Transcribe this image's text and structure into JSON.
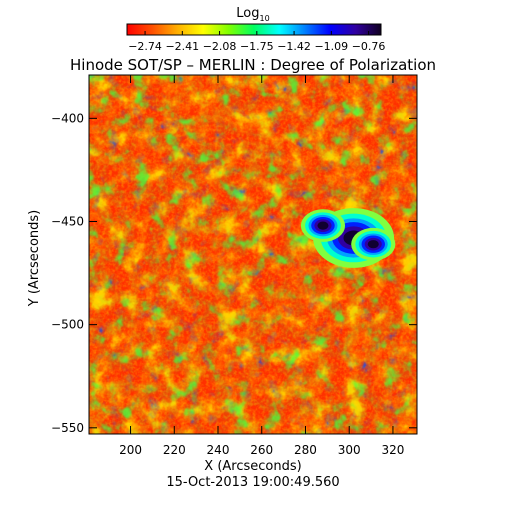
{
  "chart_data": {
    "type": "heatmap",
    "title": "Hinode SOT/SP – MERLIN : Degree of Polarization",
    "xlabel": "X (Arcseconds)",
    "ylabel": "Y (Arcseconds)",
    "date_label": "15-Oct-2013 19:00:49.560",
    "xlim": [
      181,
      331
    ],
    "ylim": [
      -553,
      -379
    ],
    "x_ticks": [
      200,
      220,
      240,
      260,
      280,
      300,
      320
    ],
    "y_ticks": [
      -550,
      -500,
      -450,
      -400
    ],
    "colorbar": {
      "title": "Log",
      "title_subscript": "10",
      "range": [
        -2.9,
        -0.65
      ],
      "ticks": [
        "−2.74",
        "−2.41",
        "−2.08",
        "−1.75",
        "−1.42",
        "−1.09",
        "−0.76"
      ],
      "colormap": [
        "#ff0000",
        "#ff5000",
        "#ffb000",
        "#ffff00",
        "#80ff00",
        "#00ff60",
        "#00ffff",
        "#0080ff",
        "#0000ff",
        "#3000a0",
        "#100020"
      ]
    },
    "features": [
      {
        "kind": "sunspot_umbra",
        "x": 302,
        "y": -458
      },
      {
        "kind": "pore",
        "x": 288,
        "y": -452
      },
      {
        "kind": "pore",
        "x": 311,
        "y": -461
      }
    ]
  }
}
